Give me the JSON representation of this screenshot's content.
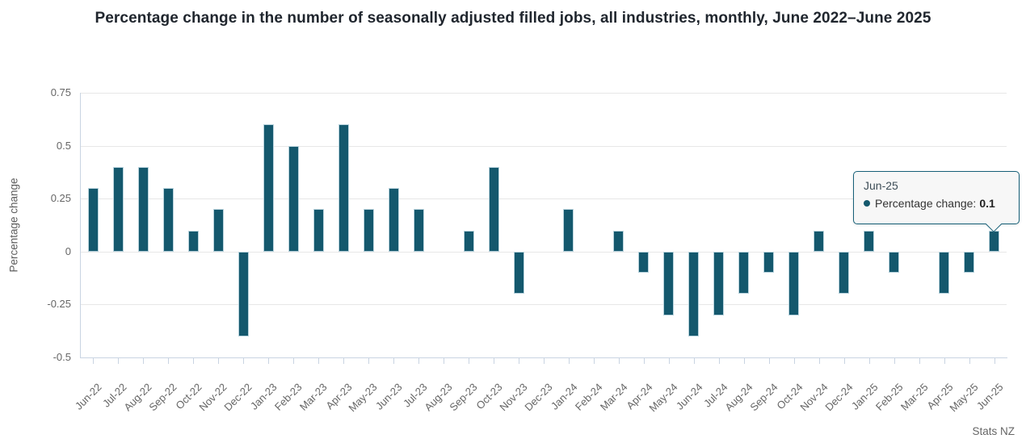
{
  "title": "Percentage change in the number of seasonally adjusted filled jobs, all industries, monthly, June 2022–June 2025",
  "source": "Stats NZ",
  "colors": {
    "bar": "#14586d",
    "tooltip_border": "#176078",
    "axis": "#c9d4e2",
    "grid": "#e7e7e7"
  },
  "tooltip": {
    "title": "Jun-25",
    "series_label": "Percentage change:",
    "value": "0.1"
  },
  "chart_data": {
    "type": "bar",
    "title": "Percentage change in the number of seasonally adjusted filled jobs, all industries, monthly, June 2022–June 2025",
    "xlabel": "",
    "ylabel": "Percentage change",
    "ylim": [
      -0.5,
      0.75
    ],
    "yticks": [
      0.75,
      0.5,
      0.25,
      0,
      -0.25,
      -0.5
    ],
    "ytick_labels": [
      "0.75",
      "0.5",
      "0.25",
      "0",
      "-0.25",
      "-0.5"
    ],
    "grid": true,
    "legend": false,
    "categories": [
      "Jun-22",
      "Jul-22",
      "Aug-22",
      "Sep-22",
      "Oct-22",
      "Nov-22",
      "Dec-22",
      "Jan-23",
      "Feb-23",
      "Mar-23",
      "Apr-23",
      "May-23",
      "Jun-23",
      "Jul-23",
      "Aug-23",
      "Sep-23",
      "Oct-23",
      "Nov-23",
      "Dec-23",
      "Jan-24",
      "Feb-24",
      "Mar-24",
      "Apr-24",
      "May-24",
      "Jun-24",
      "Jul-24",
      "Aug-24",
      "Sep-24",
      "Oct-24",
      "Nov-24",
      "Dec-24",
      "Jan-25",
      "Feb-25",
      "Mar-25",
      "Apr-25",
      "May-25",
      "Jun-25"
    ],
    "values": [
      0.3,
      0.4,
      0.4,
      0.3,
      0.1,
      0.2,
      -0.4,
      0.6,
      0.5,
      0.2,
      0.6,
      0.2,
      0.3,
      0.2,
      0,
      0.1,
      0.4,
      -0.2,
      0,
      0.2,
      0,
      0.1,
      -0.1,
      -0.3,
      -0.4,
      -0.3,
      -0.2,
      -0.1,
      -0.3,
      0.1,
      -0.2,
      0.1,
      -0.1,
      0,
      -0.2,
      -0.1,
      0.1
    ]
  }
}
